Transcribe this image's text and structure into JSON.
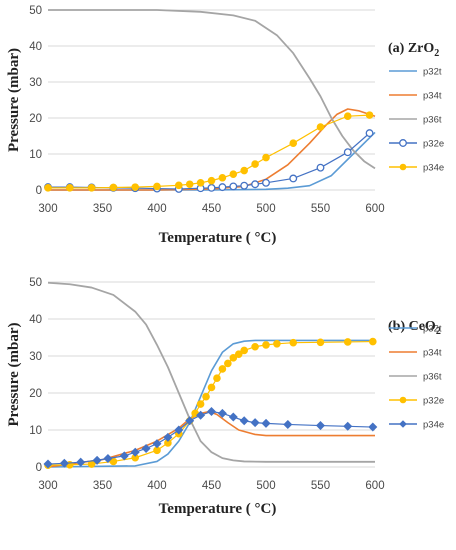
{
  "colors": {
    "p32t": "#5b9bd5",
    "p34t": "#ed7d31",
    "p36t": "#a5a5a5",
    "p32e_zro2": "#4472c4",
    "p34e_zro2": "#ffc000",
    "p32e_ceo2": "#ffc000",
    "p34e_ceo2": "#4472c4",
    "grid": "#d9d9d9"
  },
  "chart_data": [
    {
      "type": "line",
      "panel_label": "(a) ZrO",
      "panel_label_sub": "2",
      "xlabel": "Temperature ( °C)",
      "ylabel": "Pressure (mbar)",
      "xlim": [
        300,
        600
      ],
      "ylim": [
        0,
        50
      ],
      "x_ticks": [
        "300",
        "350",
        "400",
        "450",
        "500",
        "550",
        "600"
      ],
      "y_ticks": [
        "0",
        "10",
        "20",
        "30",
        "40",
        "50"
      ],
      "grid": "horizontal",
      "legend_position": "right",
      "series": [
        {
          "name": "p32t",
          "kind": "line",
          "color_key": "p32t",
          "x": [
            300,
            350,
            400,
            450,
            500,
            520,
            540,
            560,
            580,
            600
          ],
          "y": [
            0,
            0,
            0,
            0,
            0.2,
            0.5,
            1.2,
            4,
            10,
            16
          ]
        },
        {
          "name": "p34t",
          "kind": "line",
          "color_key": "p34t",
          "x": [
            300,
            350,
            400,
            450,
            480,
            500,
            520,
            540,
            555,
            565,
            575,
            585,
            595,
            600
          ],
          "y": [
            0,
            0,
            0,
            0.3,
            1,
            3,
            7,
            13,
            18,
            21,
            22.5,
            22,
            21,
            20.5
          ]
        },
        {
          "name": "p36t",
          "kind": "line",
          "color_key": "p36t",
          "x": [
            300,
            350,
            400,
            440,
            470,
            490,
            510,
            525,
            540,
            550,
            560,
            570,
            580,
            590,
            600
          ],
          "y": [
            50,
            50,
            50,
            49.5,
            48.5,
            47,
            43,
            38,
            31,
            26,
            20,
            15,
            11,
            8,
            6
          ]
        },
        {
          "name": "p32e",
          "kind": "markers-open",
          "color_key": "p32e_zro2",
          "x": [
            300,
            320,
            340,
            360,
            380,
            400,
            420,
            440,
            450,
            460,
            470,
            480,
            490,
            500,
            525,
            550,
            575,
            595
          ],
          "y": [
            0.8,
            0.8,
            0.7,
            0.6,
            0.5,
            0.4,
            0.3,
            0.5,
            0.6,
            0.8,
            1,
            1.2,
            1.6,
            2,
            3.2,
            6.2,
            10.5,
            15.8
          ]
        },
        {
          "name": "p34e",
          "kind": "markers-filled",
          "color_key": "p34e_zro2",
          "x": [
            300,
            320,
            340,
            360,
            380,
            400,
            420,
            430,
            440,
            450,
            460,
            470,
            480,
            490,
            500,
            525,
            550,
            575,
            595
          ],
          "y": [
            0.6,
            0.6,
            0.6,
            0.7,
            0.8,
            1,
            1.3,
            1.6,
            2,
            2.6,
            3.4,
            4.4,
            5.4,
            7.2,
            9,
            13,
            17.5,
            20.5,
            20.8
          ]
        }
      ]
    },
    {
      "type": "line",
      "panel_label": "(b) CeO",
      "panel_label_sub": "2",
      "xlabel": "Temperature ( °C)",
      "ylabel": "Pressure (mbar)",
      "xlim": [
        300,
        600
      ],
      "ylim": [
        0,
        50
      ],
      "x_ticks": [
        "300",
        "350",
        "400",
        "450",
        "500",
        "550",
        "600"
      ],
      "y_ticks": [
        "0",
        "10",
        "20",
        "30",
        "40",
        "50"
      ],
      "grid": "horizontal",
      "legend_position": "right",
      "series": [
        {
          "name": "p32t",
          "kind": "line",
          "color_key": "p32t",
          "x": [
            300,
            380,
            400,
            410,
            420,
            430,
            440,
            450,
            460,
            470,
            480,
            490,
            500,
            550,
            600
          ],
          "y": [
            0,
            0.3,
            1.5,
            3.5,
            7,
            12,
            19,
            26,
            31,
            33.3,
            34,
            34.2,
            34.2,
            34.2,
            34.2
          ]
        },
        {
          "name": "p34t",
          "kind": "line",
          "color_key": "p34t",
          "x": [
            300,
            350,
            380,
            400,
            420,
            430,
            440,
            448,
            455,
            465,
            475,
            490,
            500,
            550,
            600
          ],
          "y": [
            0,
            2,
            4.5,
            7,
            10.5,
            13,
            14.5,
            15,
            14.2,
            12,
            10,
            8.8,
            8.5,
            8.5,
            8.5
          ]
        },
        {
          "name": "p36t",
          "kind": "line",
          "color_key": "p36t",
          "x": [
            300,
            320,
            340,
            360,
            380,
            390,
            400,
            410,
            420,
            430,
            440,
            450,
            460,
            470,
            480,
            500,
            550,
            600
          ],
          "y": [
            49.8,
            49.4,
            48.5,
            46.5,
            42,
            38.5,
            33,
            27,
            20,
            13,
            7,
            4,
            2.4,
            1.8,
            1.5,
            1.4,
            1.4,
            1.4
          ]
        },
        {
          "name": "p32e",
          "kind": "markers-filled",
          "color_key": "p32e_ceo2",
          "x": [
            300,
            320,
            340,
            360,
            380,
            400,
            410,
            420,
            430,
            435,
            440,
            445,
            450,
            455,
            460,
            465,
            470,
            475,
            480,
            490,
            500,
            510,
            525,
            550,
            575,
            598
          ],
          "y": [
            0.5,
            0.6,
            0.8,
            1.5,
            2.5,
            4.5,
            6.5,
            9,
            12.5,
            14.5,
            17,
            19,
            21.5,
            24,
            26.5,
            28,
            29.5,
            30.5,
            31.5,
            32.5,
            33,
            33.3,
            33.6,
            33.7,
            33.8,
            33.9
          ]
        },
        {
          "name": "p34e",
          "kind": "markers-filled-diamond",
          "color_key": "p34e_ceo2",
          "x": [
            300,
            315,
            330,
            345,
            355,
            370,
            380,
            390,
            400,
            410,
            420,
            430,
            440,
            450,
            460,
            470,
            480,
            490,
            500,
            520,
            550,
            575,
            598
          ],
          "y": [
            0.8,
            1,
            1.3,
            1.8,
            2.3,
            3,
            4,
            5,
            6.3,
            8,
            10,
            12.5,
            14,
            15,
            14.5,
            13.5,
            12.5,
            12,
            11.8,
            11.5,
            11.2,
            11,
            10.8
          ]
        }
      ]
    }
  ]
}
